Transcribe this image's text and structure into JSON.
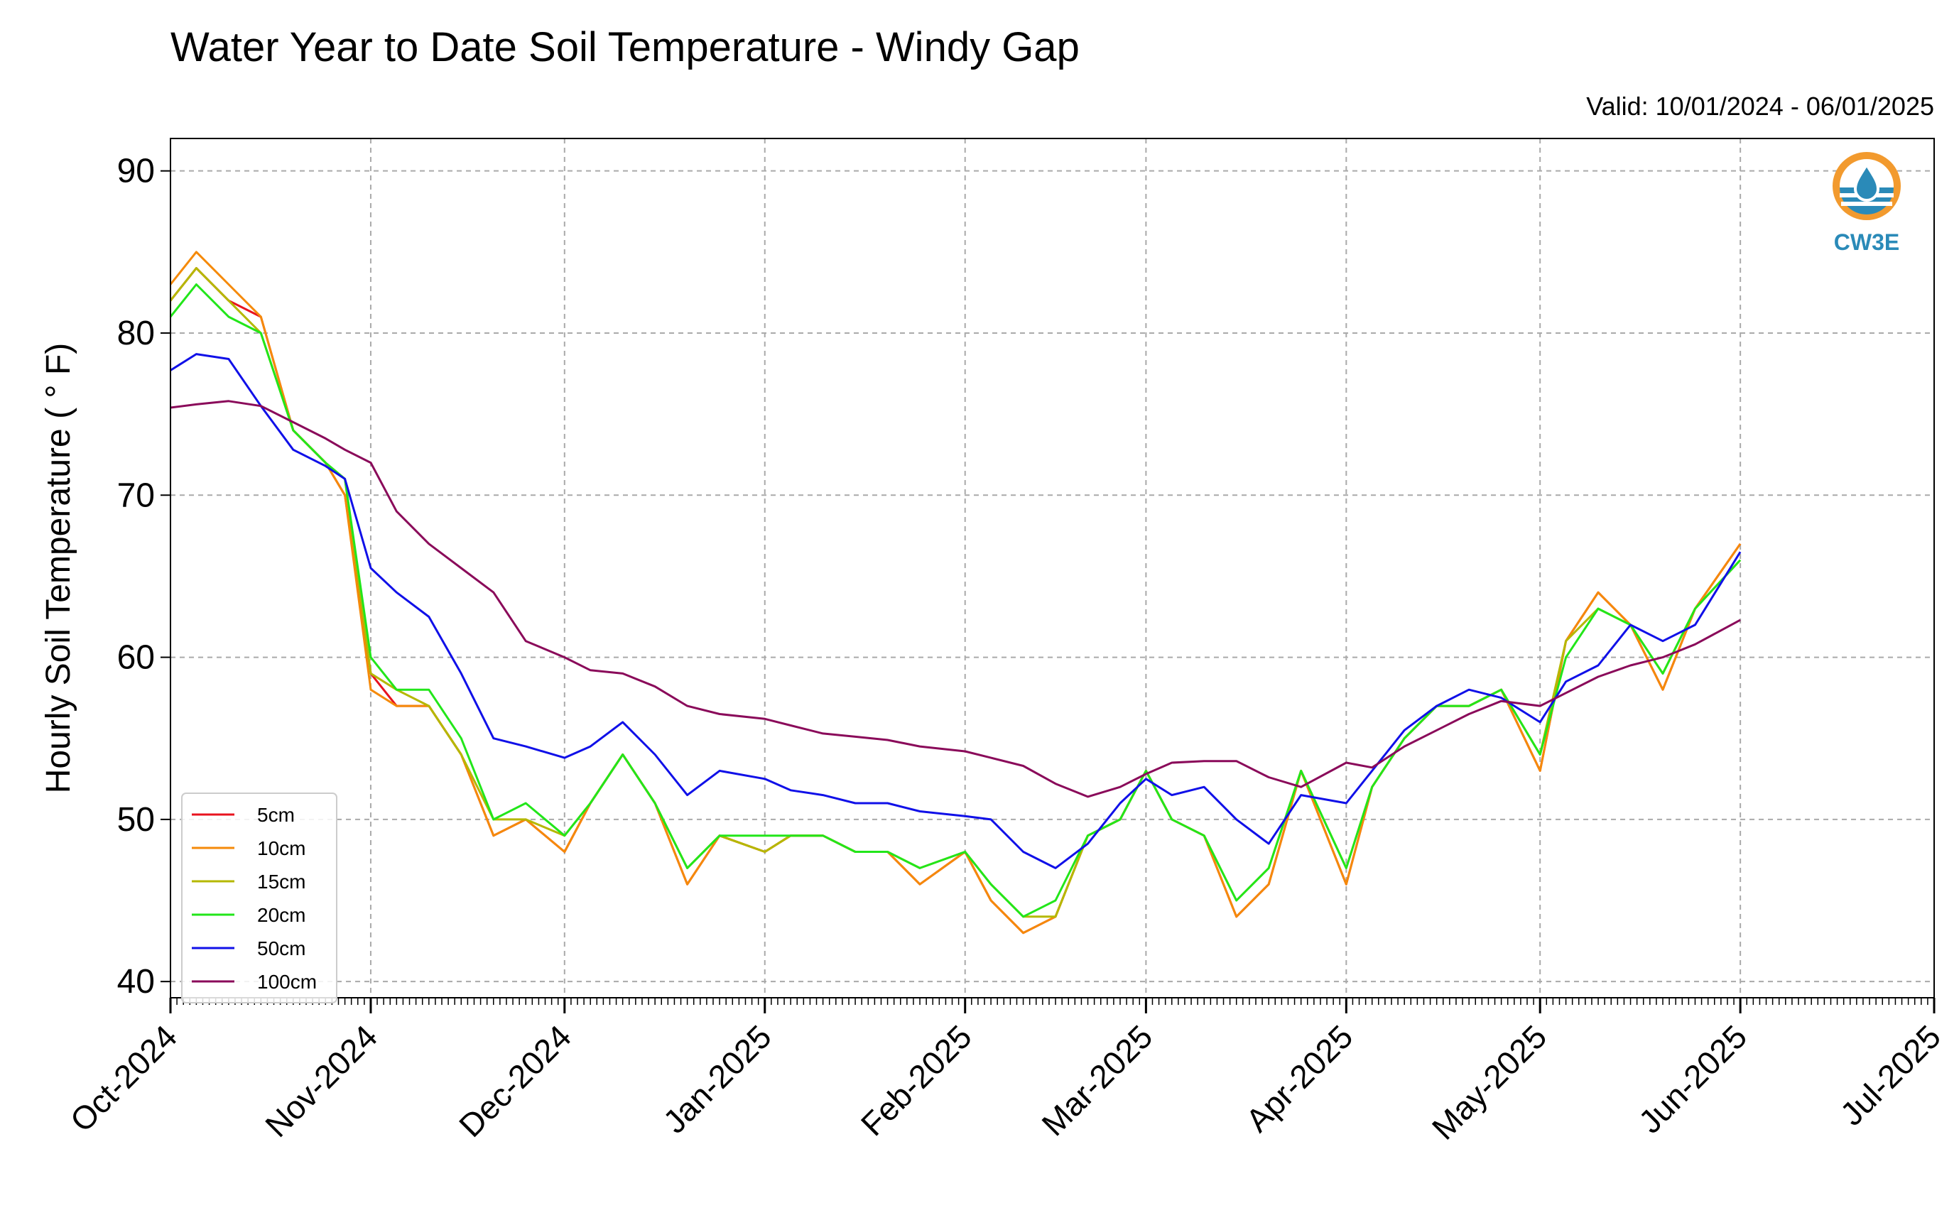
{
  "header": {
    "title": "Water Year to Date Soil Temperature - Windy Gap",
    "valid": "Valid: 10/01/2024 - 06/01/2025"
  },
  "logo": {
    "text": "CW3E",
    "icon": "cw3e-logo-icon",
    "colors": {
      "sun": "#f29a2e",
      "water": "#2a8ab8"
    }
  },
  "chart_data": {
    "type": "line",
    "title": "Water Year to Date Soil Temperature - Windy Gap",
    "subtitle": "Valid: 10/01/2024 - 06/01/2025",
    "xlabel": "",
    "ylabel": "Hourly Soil Temperature ( ° F)",
    "xlim": [
      "2024-10-01",
      "2025-07-01"
    ],
    "ylim": [
      39,
      92
    ],
    "yticks": [
      40,
      50,
      60,
      70,
      80,
      90
    ],
    "xticks": [
      {
        "date": "2024-10-01",
        "label": "Oct-2024"
      },
      {
        "date": "2024-11-01",
        "label": "Nov-2024"
      },
      {
        "date": "2024-12-01",
        "label": "Dec-2024"
      },
      {
        "date": "2025-01-01",
        "label": "Jan-2025"
      },
      {
        "date": "2025-02-01",
        "label": "Feb-2025"
      },
      {
        "date": "2025-03-01",
        "label": "Mar-2025"
      },
      {
        "date": "2025-04-01",
        "label": "Apr-2025"
      },
      {
        "date": "2025-05-01",
        "label": "May-2025"
      },
      {
        "date": "2025-06-01",
        "label": "Jun-2025"
      },
      {
        "date": "2025-07-01",
        "label": "Jul-2025"
      }
    ],
    "grid": true,
    "legend_position": "bottom-left",
    "series_dates": [
      "2024-10-01",
      "2024-10-05",
      "2024-10-10",
      "2024-10-15",
      "2024-10-20",
      "2024-10-25",
      "2024-10-28",
      "2024-11-01",
      "2024-11-05",
      "2024-11-10",
      "2024-11-15",
      "2024-11-20",
      "2024-11-25",
      "2024-12-01",
      "2024-12-05",
      "2024-12-10",
      "2024-12-15",
      "2024-12-20",
      "2024-12-25",
      "2025-01-01",
      "2025-01-05",
      "2025-01-10",
      "2025-01-15",
      "2025-01-20",
      "2025-01-25",
      "2025-02-01",
      "2025-02-05",
      "2025-02-10",
      "2025-02-15",
      "2025-02-20",
      "2025-02-25",
      "2025-03-01",
      "2025-03-05",
      "2025-03-10",
      "2025-03-15",
      "2025-03-20",
      "2025-03-25",
      "2025-04-01",
      "2025-04-05",
      "2025-04-10",
      "2025-04-15",
      "2025-04-20",
      "2025-04-25",
      "2025-05-01",
      "2025-05-05",
      "2025-05-10",
      "2025-05-15",
      "2025-05-20",
      "2025-05-25",
      "2025-06-01"
    ],
    "series": [
      {
        "name": "5cm",
        "color": "#e8131f",
        "values": [
          82,
          84,
          82,
          81,
          74,
          72,
          70,
          59,
          57,
          57,
          54,
          49,
          50,
          48,
          51,
          54,
          51,
          46,
          49,
          48,
          49,
          49,
          48,
          48,
          46,
          48,
          45,
          43,
          44,
          49,
          50,
          53,
          50,
          49,
          44,
          46,
          53,
          46,
          52,
          55,
          57,
          57,
          58,
          53,
          61,
          64,
          62,
          58,
          63,
          67
        ]
      },
      {
        "name": "10cm",
        "color": "#f58a0a",
        "values": [
          83,
          85,
          83,
          81,
          74,
          72,
          70,
          58,
          57,
          57,
          54,
          49,
          50,
          48,
          51,
          54,
          51,
          46,
          49,
          48,
          49,
          49,
          48,
          48,
          46,
          48,
          45,
          43,
          44,
          49,
          50,
          53,
          50,
          49,
          44,
          46,
          53,
          46,
          52,
          55,
          57,
          57,
          58,
          53,
          61,
          64,
          62,
          58,
          63,
          67
        ]
      },
      {
        "name": "15cm",
        "color": "#b5b800",
        "values": [
          82,
          84,
          82,
          80,
          74,
          72,
          71,
          59,
          58,
          57,
          54,
          50,
          50,
          49,
          51,
          54,
          51,
          47,
          49,
          48,
          49,
          49,
          48,
          48,
          47,
          48,
          46,
          44,
          44,
          49,
          50,
          53,
          50,
          49,
          45,
          47,
          53,
          47,
          52,
          55,
          57,
          57,
          58,
          54,
          61,
          63,
          62,
          59,
          63,
          66
        ]
      },
      {
        "name": "20cm",
        "color": "#22e61a",
        "values": [
          81,
          83,
          81,
          80,
          74,
          72,
          71,
          60,
          58,
          58,
          55,
          50,
          51,
          49,
          51,
          54,
          51,
          47,
          49,
          49,
          49,
          49,
          48,
          48,
          47,
          48,
          46,
          44,
          45,
          49,
          50,
          53,
          50,
          49,
          45,
          47,
          53,
          47,
          52,
          55,
          57,
          57,
          58,
          54,
          60,
          63,
          62,
          59,
          63,
          66
        ]
      },
      {
        "name": "50cm",
        "color": "#1010e8",
        "values": [
          77.7,
          78.7,
          78.4,
          75.5,
          72.8,
          71.8,
          71.0,
          65.5,
          64,
          62.5,
          59,
          55,
          54.5,
          53.8,
          54.5,
          56,
          54,
          51.5,
          53,
          52.5,
          51.8,
          51.5,
          51,
          51,
          50.5,
          50.2,
          50,
          48,
          47,
          48.5,
          51,
          52.5,
          51.5,
          52,
          50,
          48.5,
          51.5,
          51,
          53,
          55.5,
          57,
          58,
          57.5,
          56,
          58.5,
          59.5,
          62,
          61,
          62,
          66.5
        ]
      },
      {
        "name": "100cm",
        "color": "#8a0a5a",
        "values": [
          75.4,
          75.6,
          75.8,
          75.5,
          74.5,
          73.5,
          72.8,
          72,
          69,
          67,
          65.5,
          64,
          61,
          60,
          59.2,
          59,
          58.2,
          57,
          56.5,
          56.2,
          55.8,
          55.3,
          55.1,
          54.9,
          54.5,
          54.2,
          53.8,
          53.3,
          52.2,
          51.4,
          52,
          52.8,
          53.5,
          53.6,
          53.6,
          52.6,
          52,
          53.5,
          53.2,
          54.5,
          55.5,
          56.5,
          57.3,
          57,
          57.8,
          58.8,
          59.5,
          60,
          60.8,
          62.3
        ]
      }
    ]
  }
}
